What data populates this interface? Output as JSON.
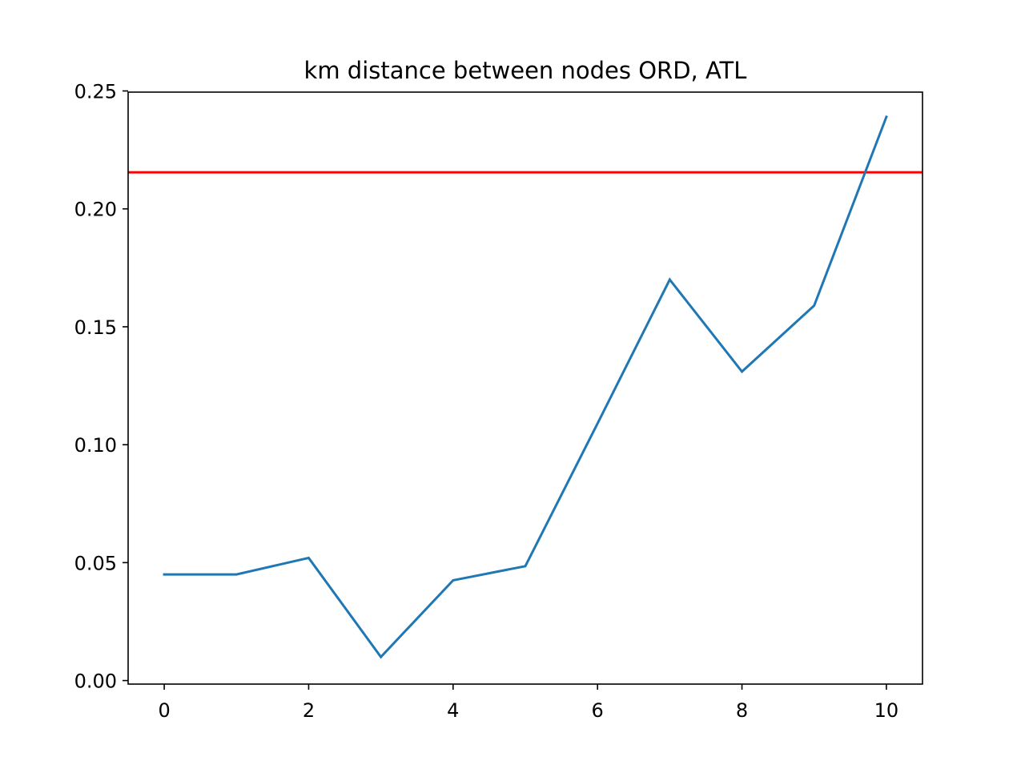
{
  "chart_data": {
    "type": "line",
    "title": "km distance between nodes ORD, ATL",
    "xlabel": "",
    "ylabel": "",
    "xlim": [
      -0.5,
      10.5
    ],
    "ylim": [
      -0.0015,
      0.2495
    ],
    "x_ticks": [
      0,
      2,
      4,
      6,
      8,
      10
    ],
    "x_tick_labels": [
      "0",
      "2",
      "4",
      "6",
      "8",
      "10"
    ],
    "y_ticks": [
      0.0,
      0.05,
      0.1,
      0.15,
      0.2,
      0.25
    ],
    "y_tick_labels": [
      "0.00",
      "0.05",
      "0.10",
      "0.15",
      "0.20",
      "0.25"
    ],
    "grid": false,
    "legend": "none",
    "series": [
      {
        "x": [
          0,
          1,
          2,
          3,
          4,
          5,
          6,
          7,
          8,
          9,
          10
        ],
        "values": [
          0.045,
          0.045,
          0.052,
          0.01,
          0.0425,
          0.0485,
          0.109,
          0.17,
          0.131,
          0.159,
          0.239
        ],
        "color": "#1f77b4"
      }
    ],
    "hlines": [
      {
        "y": 0.2155,
        "color": "#ff0000"
      }
    ]
  }
}
